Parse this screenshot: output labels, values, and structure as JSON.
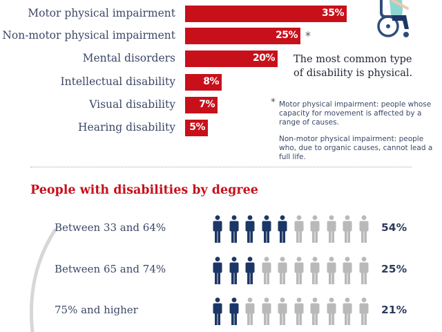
{
  "chart_data": [
    {
      "type": "bar",
      "orientation": "horizontal",
      "categories": [
        "Motor physical impairment",
        "Non-motor physical impairment",
        "Mental disorders",
        "Intellectual disability",
        "Visual disability",
        "Hearing disability"
      ],
      "values": [
        35,
        25,
        20,
        8,
        7,
        5
      ],
      "value_labels": [
        "35%",
        "25%",
        "20%",
        "8%",
        "7%",
        "5%"
      ],
      "asterisk": "*",
      "xlim": [
        0,
        35
      ],
      "bar_color": "#c8101b"
    },
    {
      "type": "pictograph",
      "title": "People with disabilities by degree",
      "categories": [
        "Between 33 and 64%",
        "Between 65 and 74%",
        "75% and higher"
      ],
      "values": [
        54,
        25,
        21
      ],
      "value_labels": [
        "54%",
        "25%",
        "21%"
      ],
      "filled_icons": [
        5,
        3,
        2
      ],
      "total_icons": 10,
      "filled_color": "#1c3766",
      "empty_color": "#b9b9b9"
    }
  ],
  "callout": {
    "line1": "The most common type",
    "line2": "of disability is physical."
  },
  "notes": {
    "asterisk": "*",
    "motor": "Motor physical impairment: people whose capacity for movement is affected by a range of causes.",
    "nonmotor": "Non-motor physical impairment: people who, due to organic causes, cannot lead a full life."
  },
  "icons": {
    "wheelchair": "wheelchair-user-icon",
    "person": "person-icon"
  }
}
